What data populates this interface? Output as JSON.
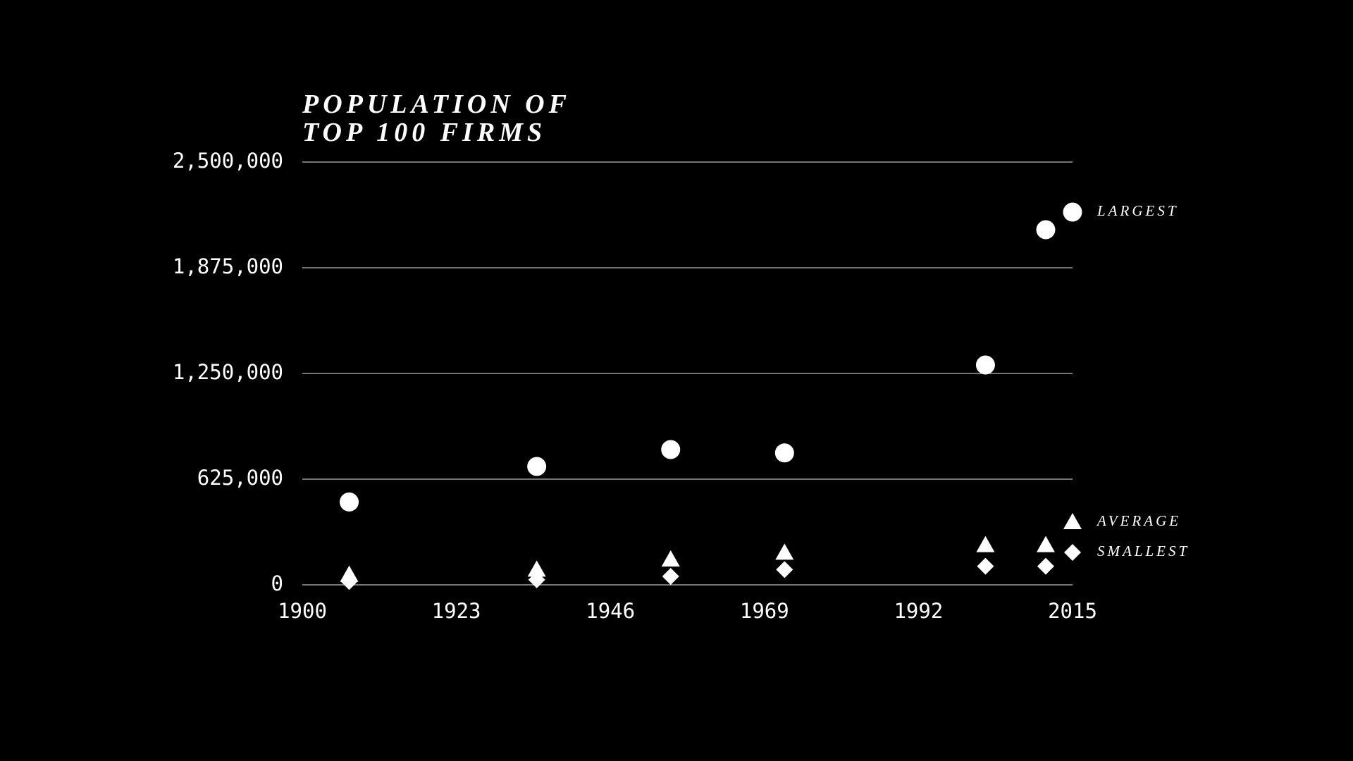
{
  "chart_data": {
    "type": "scatter",
    "title": [
      "POPULATION OF",
      "TOP 100 FIRMS"
    ],
    "x": [
      1907,
      1935,
      1955,
      1972,
      2002,
      2011
    ],
    "series": [
      {
        "name": "LARGEST",
        "color": "#ffffff",
        "marker": "circle",
        "values": [
          490000,
          700000,
          800000,
          780000,
          1300000,
          2100000
        ]
      },
      {
        "name": "AVERAGE",
        "color": "#ffffff",
        "marker": "triangle",
        "values": [
          60000,
          90000,
          150000,
          190000,
          235000,
          235000
        ]
      },
      {
        "name": "SMALLEST",
        "color": "#ffffff",
        "marker": "diamond",
        "values": [
          20000,
          30000,
          50000,
          90000,
          110000,
          110000
        ]
      }
    ],
    "xlim": [
      1900,
      2015
    ],
    "xticks": [
      1900,
      1923,
      1946,
      1969,
      1992,
      2015
    ],
    "ylim": [
      0,
      2500000
    ],
    "yticks": [
      0,
      {
        "value": 625000,
        "label": "625,000"
      },
      {
        "value": 1250000,
        "label": "1,250,000"
      },
      {
        "value": 1875000,
        "label": "1,875,000"
      },
      {
        "value": 2500000,
        "label": "2,500,000"
      }
    ],
    "grid": true
  }
}
